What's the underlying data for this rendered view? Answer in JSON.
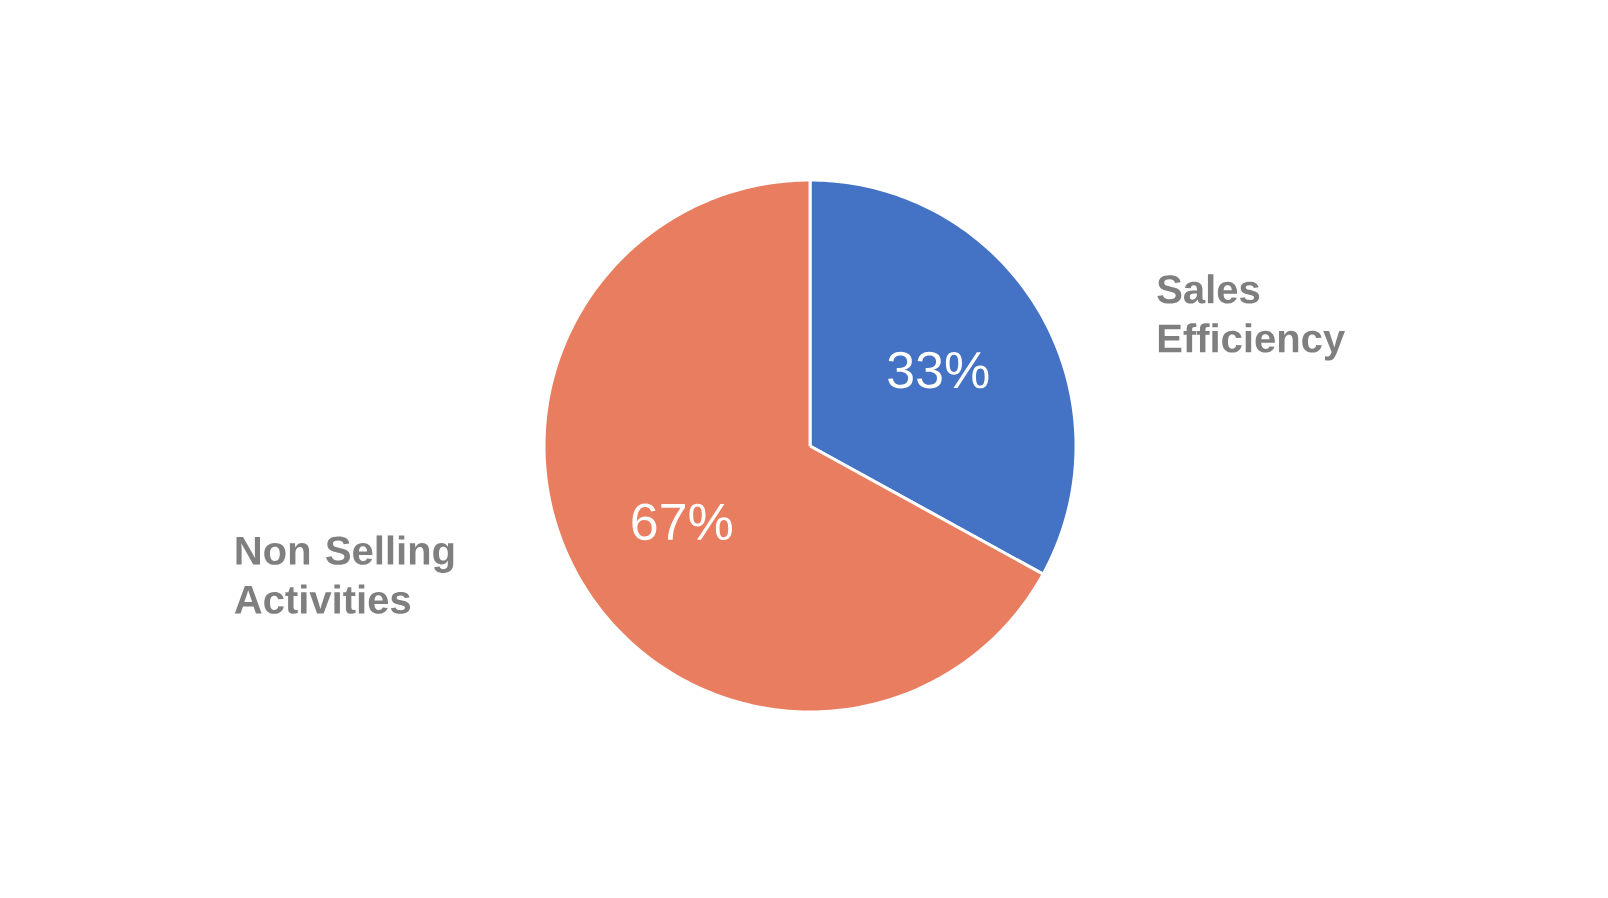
{
  "chart_data": {
    "type": "pie",
    "categories": [
      "Sales Efficiency",
      "Non Selling Activities"
    ],
    "values": [
      33,
      67
    ],
    "colors": [
      "#4472c4",
      "#e97d5f"
    ],
    "value_labels": [
      "33%",
      "67%"
    ]
  }
}
